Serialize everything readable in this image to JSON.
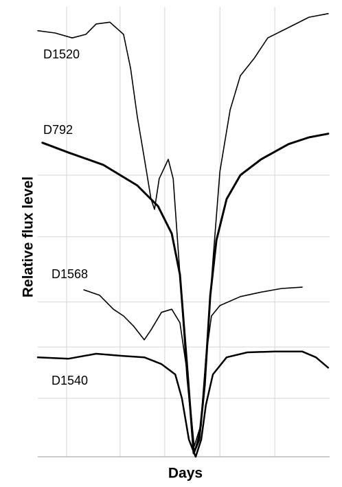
{
  "chart_data": {
    "type": "line",
    "xlabel": "Days",
    "ylabel": "Relative flux level",
    "xlim": [
      0,
      100
    ],
    "ylim": [
      0,
      100
    ],
    "xticks": [
      9.9,
      28.2,
      43.5,
      62.4,
      81.2
    ],
    "yticks": [
      13,
      24.4,
      34.4,
      48.9,
      62.6
    ],
    "grid": true,
    "series": [
      {
        "name": "D1520",
        "color": "#000000",
        "width": 1.6,
        "x": [
          0,
          5.9,
          11.8,
          16.5,
          20,
          24.7,
          29.4,
          31.8,
          34.1,
          36.5,
          38.8,
          40,
          41.6,
          44.7,
          46.4,
          48.7,
          51.1,
          53.6,
          56,
          57.6,
          60,
          62.4,
          65.9,
          69.4,
          74.1,
          78.8,
          85.9,
          92.9,
          99.5
        ],
        "values": [
          94.7,
          94.2,
          93.1,
          93.9,
          96.2,
          96.6,
          93.9,
          86.3,
          75.6,
          66.4,
          57.3,
          55,
          61.8,
          66.1,
          61.8,
          40.5,
          17.6,
          0.8,
          6.9,
          22.1,
          43.5,
          63.4,
          77.1,
          84.7,
          88.5,
          93.1,
          95.4,
          97.7,
          98.5
        ]
      },
      {
        "name": "D792",
        "color": "#000000",
        "width": 3,
        "x": [
          1.6,
          10.6,
          22.4,
          34.1,
          41.2,
          45.9,
          48.7,
          51.1,
          53.4,
          55.3,
          57.2,
          59.1,
          61.2,
          64.7,
          69.4,
          76.5,
          85.9,
          92.9,
          99.5
        ],
        "values": [
          69.8,
          67.6,
          64.9,
          60.3,
          55.7,
          49.6,
          40.5,
          20.6,
          0.8,
          3.8,
          16,
          35.9,
          48.1,
          57.3,
          62.6,
          66.1,
          69.5,
          71,
          71.8
        ]
      },
      {
        "name": "D1568",
        "color": "#000000",
        "width": 1.6,
        "x": [
          15.8,
          21.2,
          25.9,
          29.4,
          32.9,
          36.5,
          38.8,
          42.4,
          45.9,
          48.7,
          51.1,
          53.6,
          55.8,
          57.6,
          59.5,
          62.4,
          69.4,
          76.5,
          83.5,
          90.6
        ],
        "values": [
          37.1,
          35.9,
          32.8,
          31.3,
          29,
          26,
          28.2,
          32.1,
          32.8,
          29.8,
          19.1,
          2.3,
          6.9,
          22.1,
          31.3,
          33.6,
          35.6,
          36.6,
          37.4,
          37.7
        ]
      },
      {
        "name": "D1540",
        "color": "#000000",
        "width": 2.5,
        "x": [
          0,
          10.6,
          20,
          29.4,
          36.5,
          42.4,
          47.1,
          49.4,
          51.8,
          54.1,
          56,
          57.6,
          60,
          64.7,
          71.8,
          81.2,
          90.6,
          95.3,
          99.5
        ],
        "values": [
          22.1,
          21.8,
          22.9,
          22.4,
          22.1,
          20.6,
          18.3,
          13,
          3.8,
          0,
          3.8,
          11.5,
          18.3,
          22.1,
          23.2,
          23.4,
          23.4,
          22.1,
          19.8
        ]
      }
    ]
  }
}
